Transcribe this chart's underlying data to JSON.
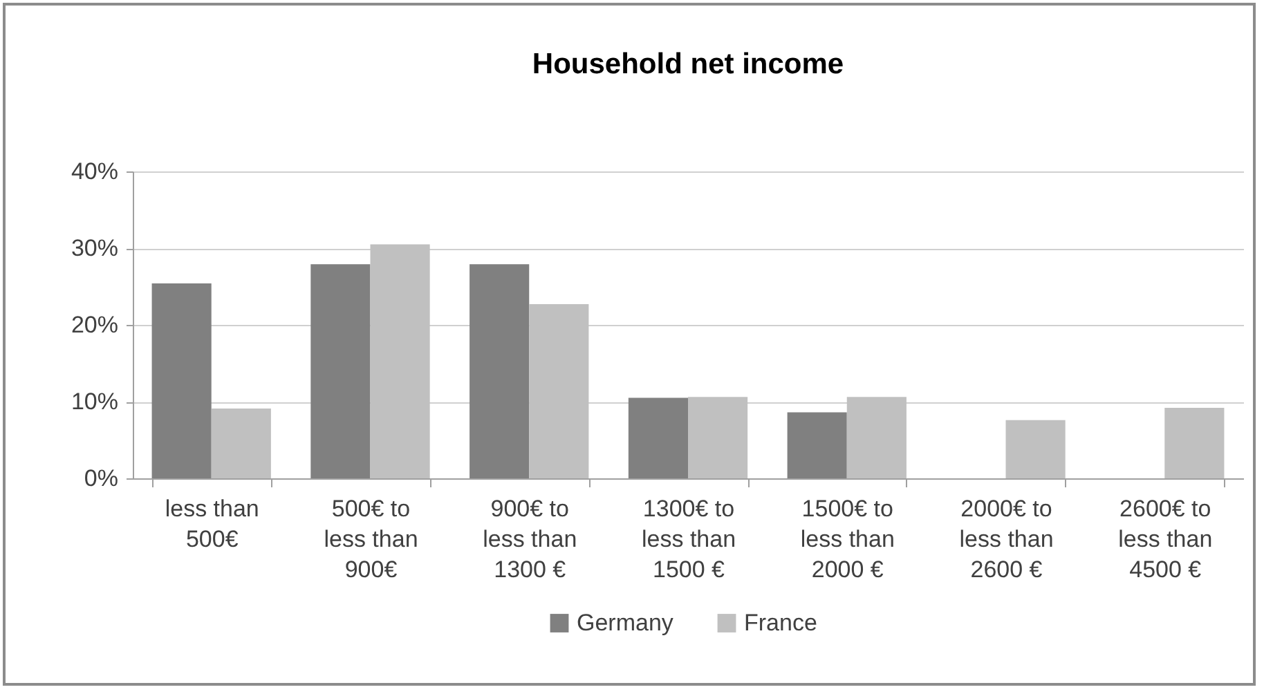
{
  "chart_data": {
    "type": "bar",
    "title": "Household net income",
    "categories": [
      "less than\n500€",
      "500€ to\nless than\n900€",
      "900€ to\nless than\n1300 €",
      "1300€ to\nless than\n1500 €",
      "1500€ to\nless than\n2000 €",
      "2000€ to\nless than\n2600 €",
      "2600€ to\nless than\n4500 €"
    ],
    "series": [
      {
        "name": "Germany",
        "color": "#808080",
        "values": [
          25.4,
          27.9,
          27.9,
          10.5,
          8.6,
          null,
          null
        ]
      },
      {
        "name": "France",
        "color": "#c0c0c0",
        "values": [
          9.1,
          30.5,
          22.7,
          10.6,
          10.6,
          7.6,
          9.2
        ]
      }
    ],
    "ylim": [
      0,
      40
    ],
    "yticks": [
      {
        "value": 0,
        "label": "0%"
      },
      {
        "value": 10,
        "label": "10%"
      },
      {
        "value": 20,
        "label": "20%"
      },
      {
        "value": 30,
        "label": "30%"
      },
      {
        "value": 40,
        "label": "40%"
      }
    ],
    "grid": "y",
    "legend": "bottom"
  }
}
